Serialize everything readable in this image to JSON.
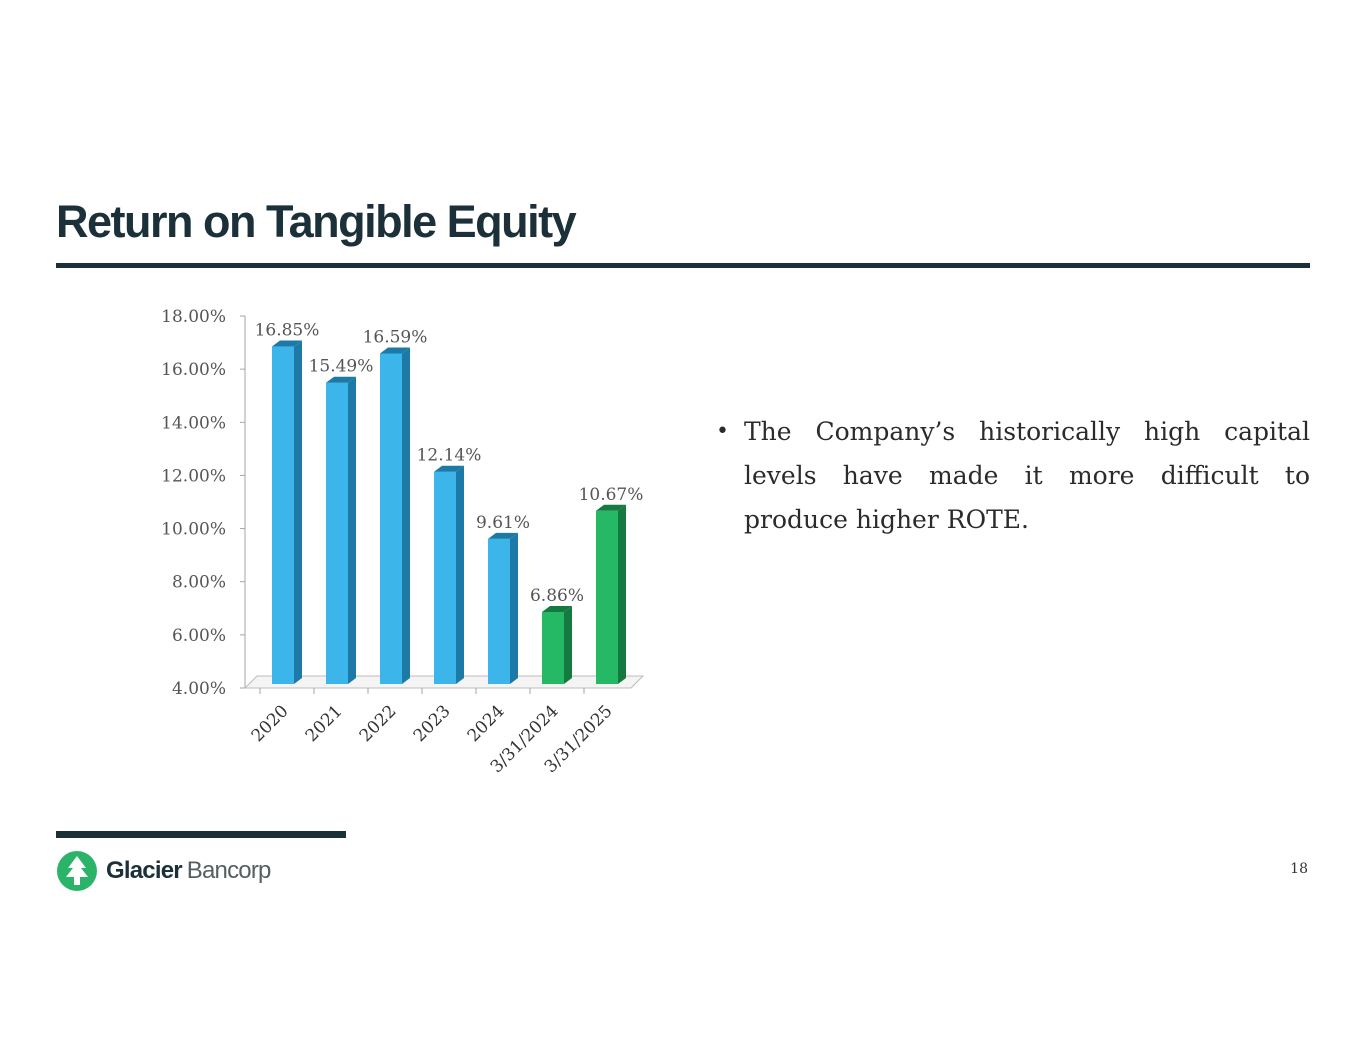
{
  "title": "Return on Tangible Equity",
  "bullets": [
    "The Company’s historically high capital levels have made it more difficult to produce higher ROTE."
  ],
  "chart_data": {
    "type": "bar",
    "title": "",
    "xlabel": "",
    "ylabel": "",
    "ylim": [
      4,
      18
    ],
    "yticks": [
      4,
      6,
      8,
      10,
      12,
      14,
      16,
      18
    ],
    "ytick_labels": [
      "4.00%",
      "6.00%",
      "8.00%",
      "10.00%",
      "12.00%",
      "14.00%",
      "16.00%",
      "18.00%"
    ],
    "categories": [
      "2020",
      "2021",
      "2022",
      "2023",
      "2024",
      "3/31/2024",
      "3/31/2025"
    ],
    "values": [
      16.85,
      15.49,
      16.59,
      12.14,
      9.61,
      6.86,
      10.67
    ],
    "data_labels": [
      "16.85%",
      "15.49%",
      "16.59%",
      "12.14%",
      "9.61%",
      "6.86%",
      "10.67%"
    ],
    "bar_colors": [
      "#3bb5ea",
      "#3bb5ea",
      "#3bb5ea",
      "#3bb5ea",
      "#3bb5ea",
      "#25b865",
      "#25b865"
    ],
    "bar_side_colors": [
      "#1d7aa6",
      "#1d7aa6",
      "#1d7aa6",
      "#1d7aa6",
      "#1d7aa6",
      "#157a40",
      "#157a40"
    ],
    "grid": false,
    "legend": "none"
  },
  "logo": {
    "word1": "Glacier",
    "word2": "Bancorp",
    "icon": "glacier-tree-logo-icon",
    "color": "#2bb469"
  },
  "page_number": "18"
}
